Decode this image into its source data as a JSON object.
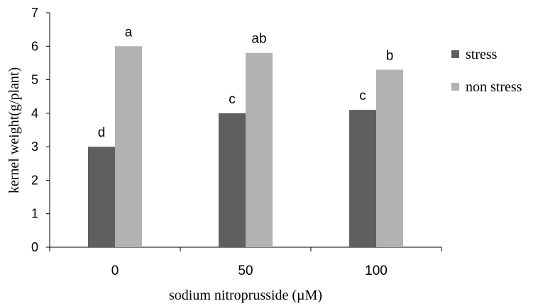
{
  "chart_data": {
    "type": "bar",
    "categories": [
      "0",
      "50",
      "100"
    ],
    "series": [
      {
        "name": "stress",
        "values": [
          3.0,
          4.0,
          4.1
        ],
        "color": "#5f5f5f",
        "labels": [
          "d",
          "c",
          "c"
        ]
      },
      {
        "name": "non stress",
        "values": [
          6.0,
          5.8,
          5.3
        ],
        "color": "#b2b2b2",
        "labels": [
          "a",
          "ab",
          "b"
        ]
      }
    ],
    "xlabel": "sodium nitroprusside (µM)",
    "ylabel": "kernel weight(g/plant)",
    "ylim": [
      0,
      7
    ],
    "yticks": [
      "0",
      "1",
      "2",
      "3",
      "4",
      "5",
      "6",
      "7"
    ],
    "grid": false,
    "legend_position": "right"
  }
}
